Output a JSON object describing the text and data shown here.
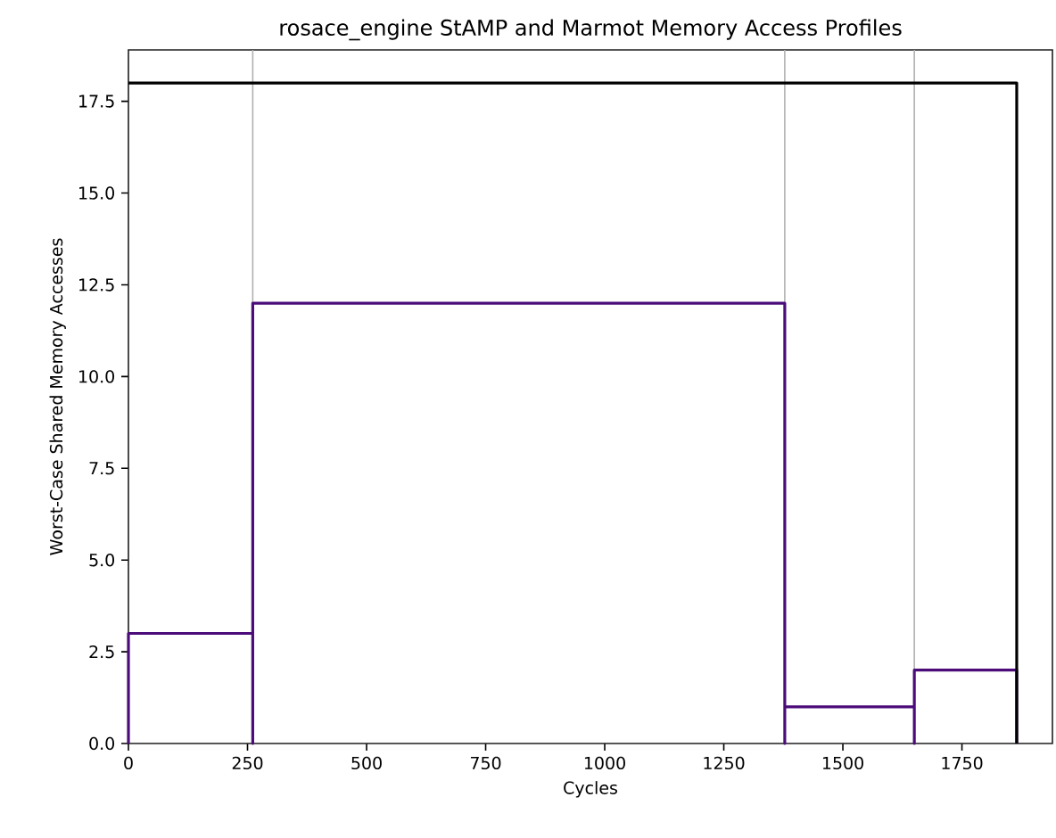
{
  "chart_data": {
    "type": "line",
    "title": "rosace_engine StAMP and Marmot Memory Access Profiles",
    "xlabel": "Cycles",
    "ylabel": "Worst-Case Shared Memory Accesses",
    "xlim": [
      0,
      1940
    ],
    "ylim": [
      0,
      18.9
    ],
    "xticks": [
      0,
      250,
      500,
      750,
      1000,
      1250,
      1500,
      1750
    ],
    "yticks": [
      {
        "value": 0,
        "label": "0.0"
      },
      2.5,
      {
        "value": 5,
        "label": "5.0"
      },
      7.5,
      {
        "value": 10,
        "label": "10.0"
      },
      12.5,
      {
        "value": 15,
        "label": "15.0"
      },
      17.5
    ],
    "ref_lines": [
      {
        "axis": "x",
        "value": 261,
        "color": "#b0b0b0"
      },
      {
        "axis": "x",
        "value": 1378,
        "color": "#b0b0b0"
      },
      {
        "axis": "x",
        "value": 1650,
        "color": "#b0b0b0"
      }
    ],
    "series": [
      {
        "color": "#4b0c7a",
        "x": [
          0,
          0,
          261,
          261,
          261,
          1378,
          1378,
          1378,
          1650,
          1650,
          1650,
          1865,
          1865
        ],
        "values": [
          0,
          3,
          3,
          0,
          12,
          12,
          0,
          1,
          1,
          0,
          2,
          2,
          0
        ]
      },
      {
        "type": "step",
        "color": "#000000",
        "x": [
          0,
          1865,
          1865
        ],
        "values": [
          18,
          18,
          0
        ]
      }
    ]
  }
}
